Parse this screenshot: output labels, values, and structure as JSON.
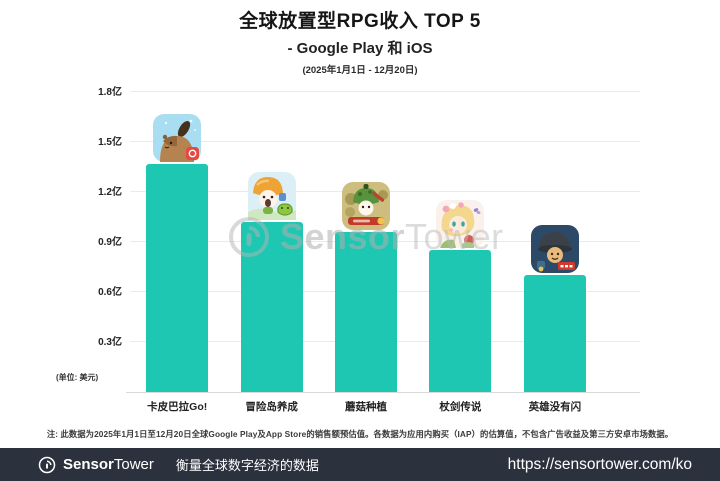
{
  "header": {
    "title": "全球放置型RPG收入 TOP 5",
    "subtitle": "- Google Play 和 iOS",
    "date_range": "(2025年1月1日 - 12月20日)"
  },
  "chart_data": {
    "type": "bar",
    "title": "全球放置型RPG收入 TOP 5 - Google Play 和 iOS (2025年1月1日 - 12月20日)",
    "categories": [
      "卡皮巴拉Go!",
      "冒险岛养成",
      "蘑菇种植",
      "杖剑传说",
      "英雄没有闪"
    ],
    "values": [
      1.37,
      1.02,
      0.96,
      0.85,
      0.7
    ],
    "unit": "亿美元",
    "unit_label": "(单位: 美元)",
    "xlabel": "",
    "ylabel": "",
    "ylim": [
      0,
      1.8
    ],
    "yticks": [
      "0.3亿",
      "0.6亿",
      "0.9亿",
      "1.2亿",
      "1.5亿",
      "1.8亿"
    ],
    "ytick_values": [
      0.3,
      0.6,
      0.9,
      1.2,
      1.5,
      1.8
    ],
    "grid": true,
    "legend": false,
    "bar_color": "#1ec7b2",
    "icon_names": [
      "capybara-go-app-icon",
      "maple-island-app-icon",
      "mushroom-planting-app-icon",
      "staff-sword-legend-app-icon",
      "hero-no-flash-app-icon"
    ]
  },
  "footnote": "注: 此数据为2025年1月1日至12月20日全球Google Play及App Store的销售额预估值。各数据为应用内购买（IAP）的估算值，不包含广告收益及第三方安卓市场数据。",
  "watermark": {
    "brand_bold": "Sensor",
    "brand_light": "Tower"
  },
  "footer": {
    "brand_bold": "Sensor",
    "brand_light": "Tower",
    "tagline": "衡量全球数字经济的数据",
    "url": "https://sensortower.com/ko"
  },
  "colors": {
    "bar": "#1ec7b2",
    "footer_bg": "#2b323e",
    "grid": "#eaeaea"
  }
}
